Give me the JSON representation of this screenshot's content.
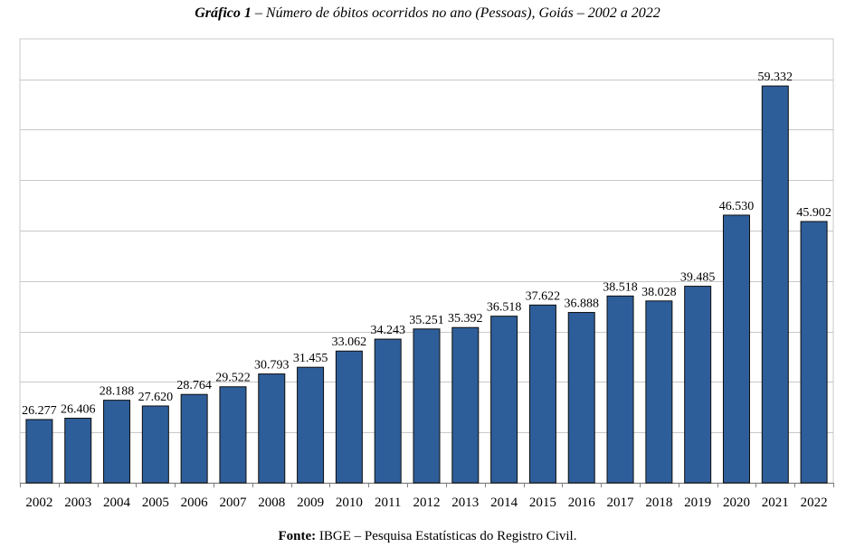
{
  "header": {
    "title_bold": "Gráfico 1",
    "title_rest": " – Número de óbitos ocorridos no ano (Pessoas), Goiás – 2002 a 2022"
  },
  "footer": {
    "source_bold": "Fonte:",
    "source_rest": " IBGE – Pesquisa Estatísticas do Registro Civil."
  },
  "chart_data": {
    "type": "bar",
    "title": "Gráfico 1 – Número de óbitos ocorridos no ano (Pessoas), Goiás – 2002 a 2022",
    "xlabel": "",
    "ylabel": "",
    "categories": [
      "2002",
      "2003",
      "2004",
      "2005",
      "2006",
      "2007",
      "2008",
      "2009",
      "2010",
      "2011",
      "2012",
      "2013",
      "2014",
      "2015",
      "2016",
      "2017",
      "2018",
      "2019",
      "2020",
      "2021",
      "2022"
    ],
    "values": [
      26277,
      26406,
      28188,
      27620,
      28764,
      29522,
      30793,
      31455,
      33062,
      34243,
      35251,
      35392,
      36518,
      37622,
      36888,
      38518,
      38028,
      39485,
      46530,
      59332,
      45902
    ],
    "value_labels": [
      "26.277",
      "26.406",
      "28.188",
      "27.620",
      "28.764",
      "29.522",
      "30.793",
      "31.455",
      "33.062",
      "34.243",
      "35.251",
      "35.392",
      "36.518",
      "37.622",
      "36.888",
      "38.518",
      "38.028",
      "39.485",
      "46.530",
      "59.332",
      "45.902"
    ],
    "ylim": [
      20000,
      64000
    ],
    "grid": true,
    "legend": "none",
    "bar_color": "#2E5E99",
    "bar_edge_color": "#0d0d0d",
    "grid_color": "#c8c8c8"
  }
}
